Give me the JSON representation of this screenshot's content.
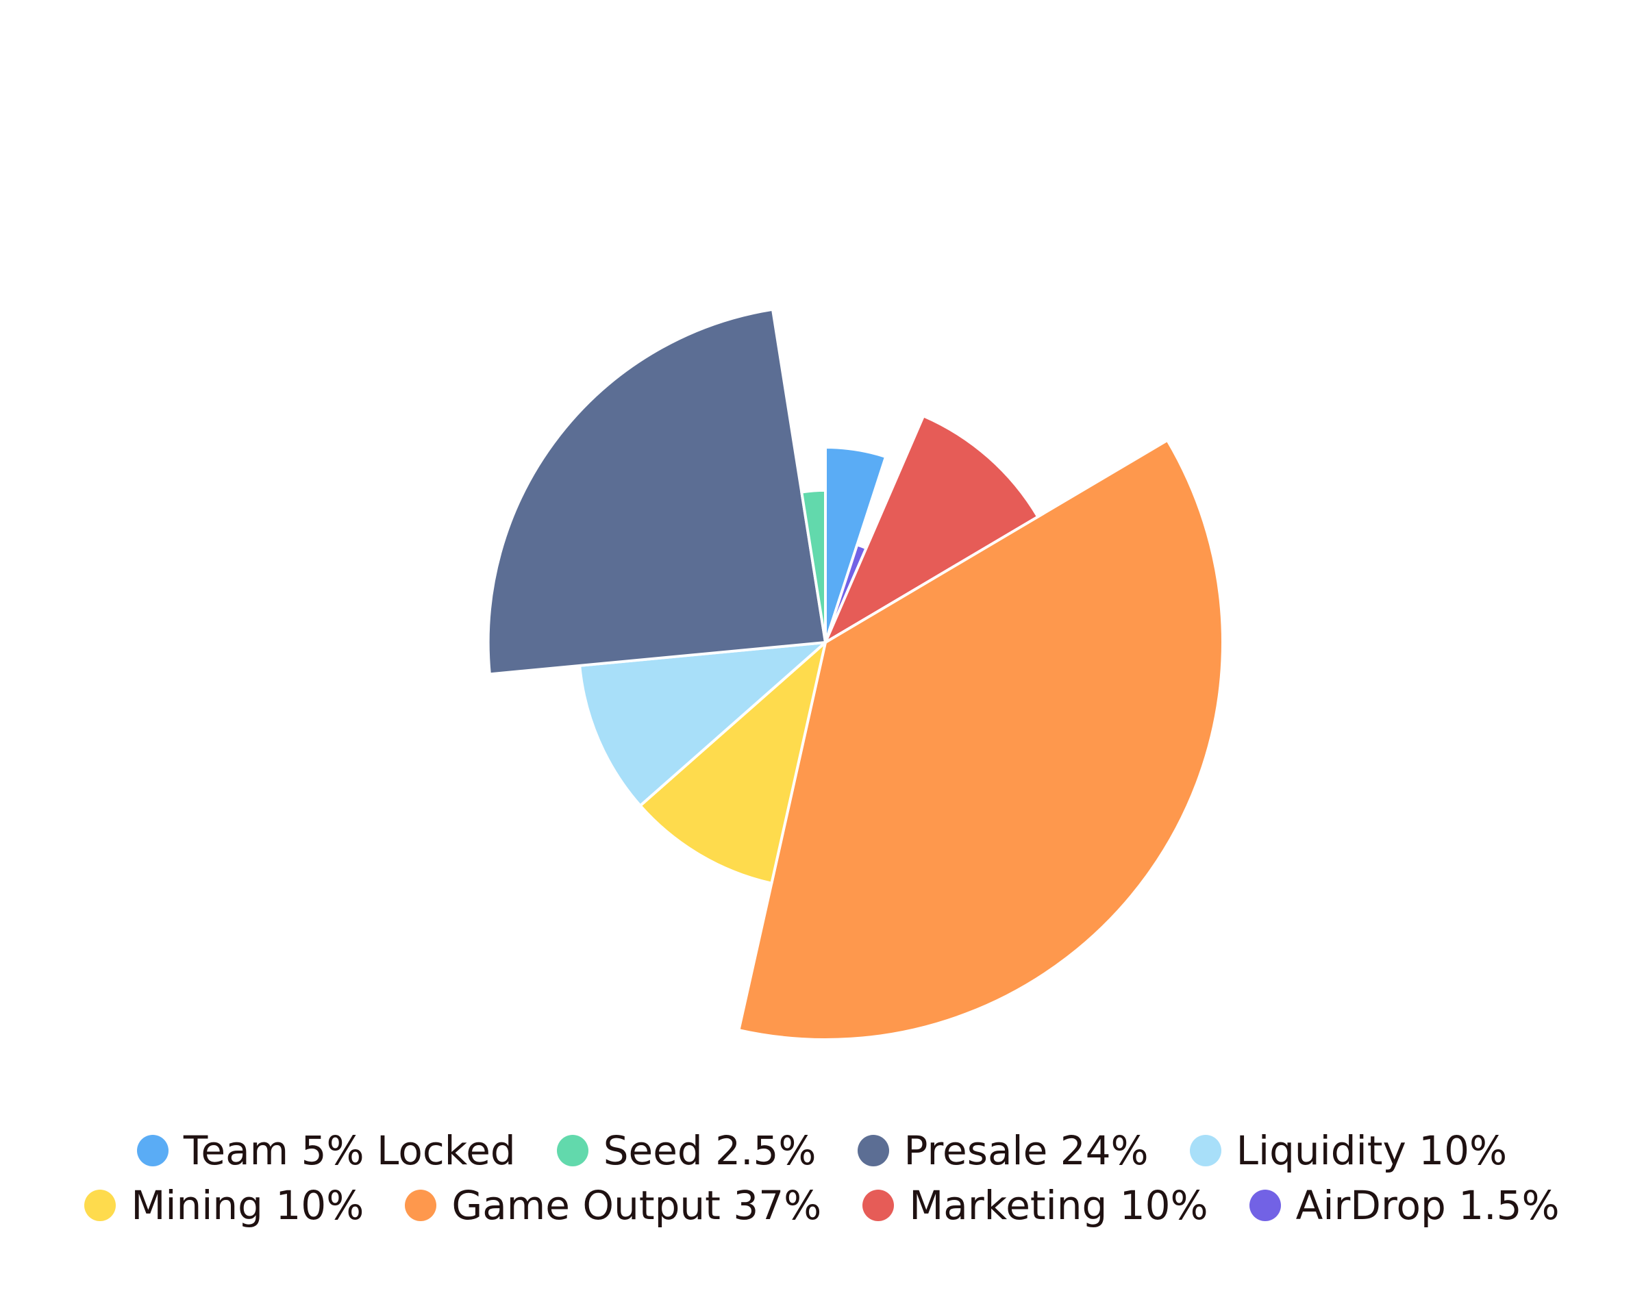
{
  "chart_data": {
    "type": "pie",
    "title": "",
    "categories": [
      "Team 5% Locked",
      "Seed 2.5%",
      "Presale 24%",
      "Liquidity 10%",
      "Mining 10%",
      "Game Output 37%",
      "Marketing 10%",
      "AirDrop 1.5%"
    ],
    "values": [
      5,
      2.5,
      24,
      10,
      10,
      37,
      10,
      1.5
    ],
    "colors": [
      "#5aacf5",
      "#62d9ac",
      "#5c6e94",
      "#a8dff9",
      "#fedb4d",
      "#fe984d",
      "#e65c57",
      "#7262e5"
    ],
    "legend_position": "bottom",
    "legend_rows": [
      [
        "Team 5% Locked",
        "Seed 2.5%",
        "Presale 24%",
        "Liquidity 10%"
      ],
      [
        "Mining 10%",
        "Game Output 37%",
        "Marketing 10%",
        "AirDrop 1.5%"
      ]
    ]
  }
}
